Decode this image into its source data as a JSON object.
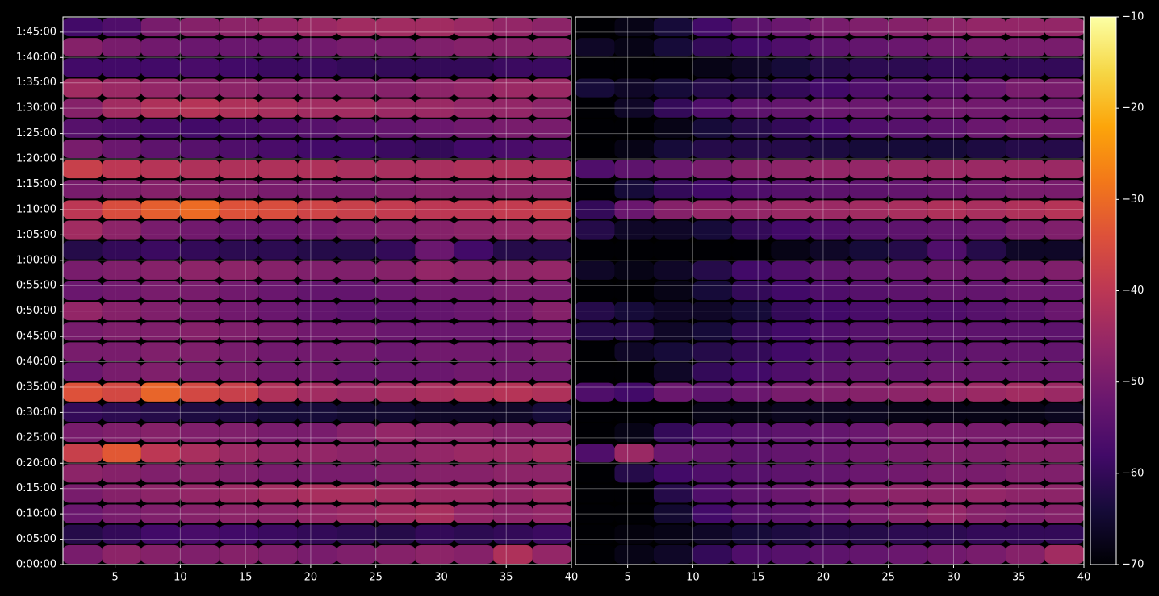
{
  "chart_data": [
    {
      "type": "heatmap",
      "colormap": "inferno",
      "clim": [
        -70,
        -10
      ],
      "grid": true,
      "xlim": [
        1,
        40
      ],
      "ylim": [
        0,
        6480
      ],
      "xbins": [
        1,
        4,
        7,
        10,
        13,
        16,
        19,
        22,
        25,
        28,
        31,
        34,
        37,
        40
      ],
      "ybins": [
        0,
        240,
        480,
        720,
        960,
        1200,
        1440,
        1680,
        1920,
        2160,
        2400,
        2640,
        2880,
        3120,
        3360,
        3600,
        3840,
        4080,
        4320,
        4560,
        4800,
        5040,
        5280,
        5520,
        5760,
        6000,
        6240,
        6480
      ],
      "xticks": [
        5,
        10,
        15,
        20,
        25,
        30,
        35,
        40
      ],
      "yticks": [
        {
          "value": 0,
          "label": "0:00:00"
        },
        {
          "value": 300,
          "label": "0:05:00"
        },
        {
          "value": 600,
          "label": "0:10:00"
        },
        {
          "value": 900,
          "label": "0:15:00"
        },
        {
          "value": 1200,
          "label": "0:20:00"
        },
        {
          "value": 1500,
          "label": "0:25:00"
        },
        {
          "value": 1800,
          "label": "0:30:00"
        },
        {
          "value": 2100,
          "label": "0:35:00"
        },
        {
          "value": 2400,
          "label": "0:40:00"
        },
        {
          "value": 2700,
          "label": "0:45:00"
        },
        {
          "value": 3000,
          "label": "0:50:00"
        },
        {
          "value": 3300,
          "label": "0:55:00"
        },
        {
          "value": 3600,
          "label": "1:00:00"
        },
        {
          "value": 3900,
          "label": "1:05:00"
        },
        {
          "value": 4200,
          "label": "1:10:00"
        },
        {
          "value": 4500,
          "label": "1:15:00"
        },
        {
          "value": 4800,
          "label": "1:20:00"
        },
        {
          "value": 5100,
          "label": "1:25:00"
        },
        {
          "value": 5400,
          "label": "1:30:00"
        },
        {
          "value": 5700,
          "label": "1:35:00"
        },
        {
          "value": 6000,
          "label": "1:40:00"
        },
        {
          "value": 6300,
          "label": "1:45:00"
        }
      ],
      "values": [
        [
          -50,
          -47,
          -48,
          -49,
          -48,
          -49,
          -50,
          -49,
          -48,
          -47,
          -48,
          -42,
          -46
        ],
        [
          -62,
          -60,
          -58,
          -57,
          -58,
          -59,
          -60,
          -61,
          -62,
          -60,
          -61,
          -60,
          -59
        ],
        [
          -52,
          -50,
          -49,
          -48,
          -47,
          -47,
          -46,
          -45,
          -44,
          -43,
          -46,
          -47,
          -46
        ],
        [
          -50,
          -48,
          -47,
          -46,
          -45,
          -44,
          -43,
          -43,
          -44,
          -45,
          -45,
          -46,
          -45
        ],
        [
          -47,
          -48,
          -49,
          -48,
          -49,
          -50,
          -50,
          -50,
          -49,
          -48,
          -48,
          -47,
          -47
        ],
        [
          -38,
          -33,
          -40,
          -43,
          -45,
          -46,
          -46,
          -47,
          -47,
          -46,
          -45,
          -45,
          -44
        ],
        [
          -50,
          -49,
          -48,
          -49,
          -49,
          -50,
          -50,
          -48,
          -46,
          -47,
          -47,
          -48,
          -48
        ],
        [
          -60,
          -61,
          -62,
          -63,
          -63,
          -64,
          -64,
          -65,
          -65,
          -66,
          -66,
          -66,
          -64
        ],
        [
          -34,
          -36,
          -31,
          -36,
          -38,
          -42,
          -44,
          -45,
          -44,
          -43,
          -42,
          -41,
          -42
        ],
        [
          -52,
          -50,
          -49,
          -50,
          -50,
          -51,
          -51,
          -52,
          -52,
          -52,
          -51,
          -51,
          -51
        ],
        [
          -50,
          -50,
          -49,
          -49,
          -50,
          -51,
          -51,
          -51,
          -52,
          -51,
          -51,
          -51,
          -50
        ],
        [
          -50,
          -49,
          -49,
          -48,
          -49,
          -50,
          -51,
          -51,
          -52,
          -52,
          -52,
          -52,
          -51
        ],
        [
          -46,
          -48,
          -49,
          -50,
          -51,
          -52,
          -53,
          -54,
          -54,
          -53,
          -52,
          -51,
          -48
        ],
        [
          -52,
          -51,
          -50,
          -50,
          -51,
          -52,
          -53,
          -53,
          -52,
          -51,
          -51,
          -50,
          -50
        ],
        [
          -50,
          -49,
          -48,
          -47,
          -47,
          -48,
          -49,
          -49,
          -48,
          -46,
          -47,
          -47,
          -46
        ],
        [
          -62,
          -60,
          -59,
          -60,
          -61,
          -61,
          -62,
          -62,
          -60,
          -52,
          -58,
          -62,
          -62
        ],
        [
          -44,
          -47,
          -50,
          -51,
          -52,
          -52,
          -51,
          -50,
          -49,
          -48,
          -47,
          -46,
          -45
        ],
        [
          -40,
          -35,
          -32,
          -30,
          -34,
          -35,
          -37,
          -38,
          -39,
          -40,
          -40,
          -39,
          -38
        ],
        [
          -50,
          -49,
          -48,
          -48,
          -49,
          -50,
          -50,
          -50,
          -49,
          -48,
          -48,
          -47,
          -47
        ],
        [
          -38,
          -40,
          -41,
          -42,
          -42,
          -42,
          -42,
          -43,
          -43,
          -43,
          -42,
          -42,
          -42
        ],
        [
          -50,
          -52,
          -54,
          -55,
          -56,
          -57,
          -58,
          -58,
          -59,
          -60,
          -58,
          -57,
          -56
        ],
        [
          -55,
          -56,
          -57,
          -58,
          -57,
          -56,
          -55,
          -54,
          -53,
          -52,
          -51,
          -50,
          -50
        ],
        [
          -48,
          -44,
          -42,
          -41,
          -42,
          -43,
          -44,
          -44,
          -45,
          -45,
          -46,
          -46,
          -47
        ],
        [
          -44,
          -45,
          -46,
          -47,
          -47,
          -48,
          -48,
          -48,
          -48,
          -47,
          -46,
          -45,
          -45
        ],
        [
          -58,
          -58,
          -58,
          -57,
          -58,
          -59,
          -59,
          -60,
          -60,
          -60,
          -60,
          -59,
          -59
        ],
        [
          -48,
          -50,
          -51,
          -52,
          -52,
          -52,
          -51,
          -50,
          -50,
          -49,
          -48,
          -48,
          -48
        ],
        [
          -58,
          -56,
          -50,
          -48,
          -47,
          -46,
          -45,
          -44,
          -44,
          -44,
          -45,
          -46,
          -47
        ]
      ]
    },
    {
      "type": "heatmap",
      "colormap": "inferno",
      "clim": [
        -70,
        -10
      ],
      "grid": true,
      "xlim": [
        1,
        40
      ],
      "ylim": [
        0,
        6480
      ],
      "xbins": [
        1,
        4,
        7,
        10,
        13,
        16,
        19,
        22,
        25,
        28,
        31,
        34,
        37,
        40
      ],
      "ybins": [
        0,
        240,
        480,
        720,
        960,
        1200,
        1440,
        1680,
        1920,
        2160,
        2400,
        2640,
        2880,
        3120,
        3360,
        3600,
        3840,
        4080,
        4320,
        4560,
        4800,
        5040,
        5280,
        5520,
        5760,
        6000,
        6240,
        6480
      ],
      "xticks": [
        5,
        10,
        15,
        20,
        25,
        30,
        35,
        40
      ],
      "colorbar_ticks": [
        {
          "value": -10,
          "label": "−10"
        },
        {
          "value": -20,
          "label": "−20"
        },
        {
          "value": -30,
          "label": "−30"
        },
        {
          "value": -40,
          "label": "−40"
        },
        {
          "value": -50,
          "label": "−50"
        },
        {
          "value": -60,
          "label": "−60"
        },
        {
          "value": -70,
          "label": "−70"
        }
      ],
      "values": [
        [
          -70,
          -68,
          -66,
          -60,
          -56,
          -55,
          -54,
          -53,
          -52,
          -51,
          -50,
          -48,
          -44
        ],
        [
          -70,
          -69,
          -68,
          -66,
          -64,
          -63,
          -62,
          -62,
          -61,
          -61,
          -60,
          -60,
          -60
        ],
        [
          -70,
          -70,
          -65,
          -58,
          -55,
          -54,
          -52,
          -50,
          -48,
          -46,
          -48,
          -49,
          -48
        ],
        [
          -70,
          -70,
          -62,
          -56,
          -54,
          -52,
          -50,
          -48,
          -47,
          -47,
          -46,
          -47,
          -47
        ],
        [
          -70,
          -62,
          -58,
          -56,
          -55,
          -54,
          -53,
          -52,
          -51,
          -50,
          -50,
          -49,
          -49
        ],
        [
          -56,
          -45,
          -52,
          -53,
          -54,
          -53,
          -52,
          -51,
          -50,
          -49,
          -49,
          -48,
          -48
        ],
        [
          -70,
          -68,
          -60,
          -56,
          -55,
          -54,
          -53,
          -52,
          -50,
          -50,
          -50,
          -50,
          -50
        ],
        [
          -70,
          -70,
          -70,
          -68,
          -68,
          -67,
          -67,
          -67,
          -68,
          -68,
          -68,
          -68,
          -67
        ],
        [
          -56,
          -58,
          -52,
          -54,
          -52,
          -50,
          -49,
          -48,
          -47,
          -46,
          -45,
          -44,
          -45
        ],
        [
          -70,
          -70,
          -66,
          -60,
          -58,
          -56,
          -54,
          -53,
          -53,
          -52,
          -52,
          -52,
          -52
        ],
        [
          -70,
          -66,
          -64,
          -62,
          -60,
          -58,
          -56,
          -55,
          -54,
          -54,
          -53,
          -53,
          -53
        ],
        [
          -62,
          -62,
          -66,
          -64,
          -60,
          -58,
          -56,
          -55,
          -54,
          -54,
          -54,
          -54,
          -54
        ],
        [
          -62,
          -64,
          -66,
          -66,
          -64,
          -60,
          -58,
          -57,
          -56,
          -56,
          -55,
          -54,
          -52
        ],
        [
          -70,
          -70,
          -68,
          -64,
          -60,
          -58,
          -56,
          -55,
          -54,
          -53,
          -53,
          -52,
          -52
        ],
        [
          -66,
          -68,
          -66,
          -62,
          -58,
          -56,
          -54,
          -53,
          -52,
          -51,
          -51,
          -50,
          -49
        ],
        [
          -70,
          -70,
          -70,
          -70,
          -70,
          -68,
          -66,
          -64,
          -62,
          -56,
          -62,
          -66,
          -66
        ],
        [
          -62,
          -66,
          -66,
          -64,
          -60,
          -58,
          -56,
          -55,
          -54,
          -53,
          -52,
          -50,
          -49
        ],
        [
          -60,
          -52,
          -48,
          -46,
          -46,
          -45,
          -45,
          -44,
          -43,
          -42,
          -43,
          -42,
          -41
        ],
        [
          -70,
          -64,
          -60,
          -58,
          -56,
          -55,
          -54,
          -54,
          -53,
          -52,
          -51,
          -50,
          -50
        ],
        [
          -56,
          -54,
          -52,
          -50,
          -48,
          -47,
          -46,
          -46,
          -45,
          -45,
          -45,
          -45,
          -45
        ],
        [
          -70,
          -68,
          -64,
          -62,
          -62,
          -62,
          -63,
          -64,
          -64,
          -64,
          -63,
          -62,
          -62
        ],
        [
          -70,
          -70,
          -68,
          -64,
          -62,
          -60,
          -58,
          -56,
          -55,
          -54,
          -52,
          -51,
          -51
        ],
        [
          -70,
          -66,
          -60,
          -56,
          -54,
          -53,
          -52,
          -52,
          -52,
          -51,
          -51,
          -51,
          -51
        ],
        [
          -64,
          -66,
          -64,
          -62,
          -62,
          -60,
          -58,
          -56,
          -55,
          -54,
          -52,
          -50,
          -50
        ],
        [
          -70,
          -70,
          -70,
          -68,
          -66,
          -64,
          -62,
          -61,
          -61,
          -60,
          -60,
          -60,
          -60
        ],
        [
          -66,
          -68,
          -64,
          -60,
          -58,
          -56,
          -54,
          -53,
          -52,
          -51,
          -50,
          -50,
          -50
        ],
        [
          -70,
          -68,
          -64,
          -58,
          -54,
          -52,
          -50,
          -49,
          -48,
          -47,
          -46,
          -46,
          -46
        ]
      ]
    }
  ]
}
